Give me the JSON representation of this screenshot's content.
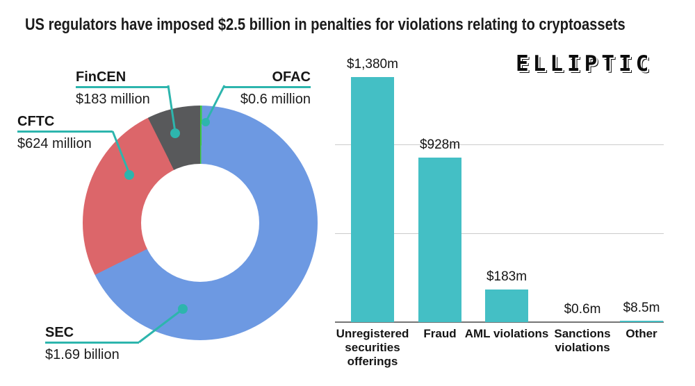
{
  "title": "US regulators have imposed $2.5 billion in penalties for violations relating to cryptoassets",
  "logo": "ELLIPTIC",
  "colors": {
    "sec_blue": "#6d99e2",
    "cftc_red": "#dc666a",
    "fincen_gray": "#58595b",
    "ofac_green": "#3dcb41",
    "callout_teal": "#2db5ad",
    "bar_teal": "#44bfc5",
    "gridline": "#cbcbcb",
    "axis": "#757575"
  },
  "chart_data": [
    {
      "type": "pie",
      "subtype": "donut",
      "start_angle": "12 o'clock",
      "direction": "clockwise",
      "order_clockwise": [
        "OFAC",
        "SEC",
        "CFTC",
        "FinCEN"
      ],
      "slices": [
        {
          "label": "SEC",
          "value_text": "$1.69 billion",
          "value_millions": 1690,
          "color": "#6d99e2"
        },
        {
          "label": "CFTC",
          "value_text": "$624 million",
          "value_millions": 624,
          "color": "#dc666a"
        },
        {
          "label": "FinCEN",
          "value_text": "$183 million",
          "value_millions": 183,
          "color": "#58595b"
        },
        {
          "label": "OFAC",
          "value_text": "$0.6 million",
          "value_millions": 0.6,
          "color": "#3dcb41"
        }
      ]
    },
    {
      "type": "bar",
      "categories": [
        "Unregistered securities offerings",
        "Fraud",
        "AML violations",
        "Sanctions violations",
        "Other"
      ],
      "values": [
        1380,
        928,
        183,
        0.6,
        8.5
      ],
      "value_labels": [
        "$1,380m",
        "$928m",
        "$183m",
        "$0.6m",
        "$8.5m"
      ],
      "unit": "millions USD",
      "ylim": [
        0,
        1500
      ],
      "gridlines": [
        500,
        1000
      ],
      "grid": "horizontal lines, no y-axis tick labels",
      "legend": "none",
      "bar_color": "#44bfc5"
    }
  ]
}
